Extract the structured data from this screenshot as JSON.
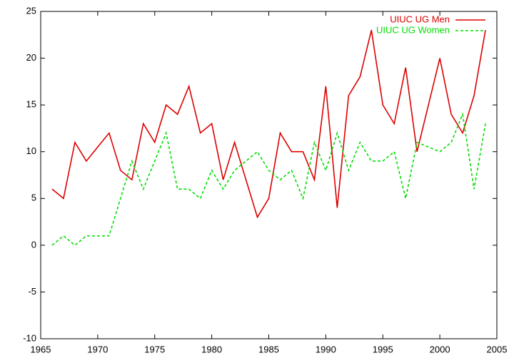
{
  "chart_data": {
    "type": "line",
    "x": [
      1966,
      1967,
      1968,
      1969,
      1970,
      1971,
      1972,
      1973,
      1974,
      1975,
      1976,
      1977,
      1978,
      1979,
      1980,
      1981,
      1982,
      1983,
      1984,
      1985,
      1986,
      1987,
      1988,
      1989,
      1990,
      1991,
      1992,
      1993,
      1994,
      1995,
      1996,
      1997,
      1998,
      1999,
      2000,
      2001,
      2002,
      2003,
      2004
    ],
    "series": [
      {
        "name": "UIUC UG Men",
        "color": "#dd0000",
        "dash": false,
        "values": [
          6,
          5,
          11,
          9,
          10.5,
          12,
          8,
          7,
          13,
          11,
          15,
          14,
          17,
          12,
          13,
          7,
          11,
          7,
          3,
          5,
          12,
          10,
          10,
          7,
          17,
          4,
          16,
          18,
          23,
          15,
          13,
          19,
          10,
          15,
          20,
          14,
          12,
          16,
          23
        ]
      },
      {
        "name": "UIUC UG Women",
        "color": "#00dd00",
        "dash": true,
        "values": [
          0,
          1,
          0,
          1,
          1,
          1,
          5,
          9,
          6,
          9,
          12,
          6,
          6,
          5,
          8,
          6,
          8,
          9,
          10,
          8,
          7,
          8,
          5,
          11,
          8,
          12,
          8,
          11,
          9,
          9,
          10,
          5,
          11,
          10.5,
          10,
          11,
          14,
          6,
          13
        ]
      }
    ],
    "xlim": [
      1965,
      2005
    ],
    "xticks": [
      1965,
      1970,
      1975,
      1980,
      1985,
      1990,
      1995,
      2000,
      2005
    ],
    "ylim": [
      -10,
      25
    ],
    "yticks": [
      -10,
      -5,
      0,
      5,
      10,
      15,
      20,
      25
    ],
    "legend": "top-right"
  }
}
